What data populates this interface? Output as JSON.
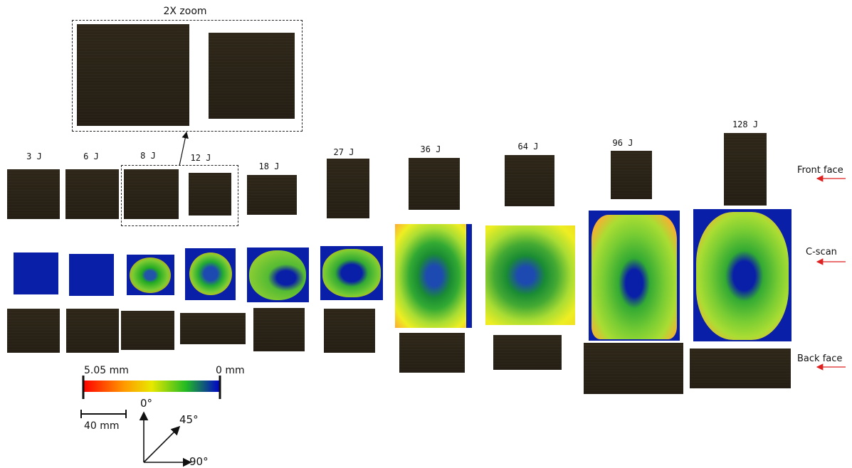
{
  "zoom_label": "2X zoom",
  "energies": [
    "3 J",
    "6 J",
    "8 J",
    "12 J",
    "18 J",
    "27 J",
    "36 J",
    "64 J",
    "96 J",
    "128 J"
  ],
  "row_labels": {
    "front": "Front face",
    "cscan": "C-scan",
    "back": "Back face"
  },
  "colorbar": {
    "max_label": "5.05 mm",
    "min_label": "0 mm",
    "colors": [
      "#ff0000",
      "#ff9900",
      "#e8e800",
      "#22bb22",
      "#0000cc"
    ]
  },
  "scale_bar": {
    "label": "40 mm"
  },
  "axes": {
    "zero": "0°",
    "fortyfive": "45°",
    "ninety": "90°"
  },
  "colors": {
    "panel": "#2a2418",
    "deep": "#0a1fa8",
    "arrow": "#dd2222"
  }
}
